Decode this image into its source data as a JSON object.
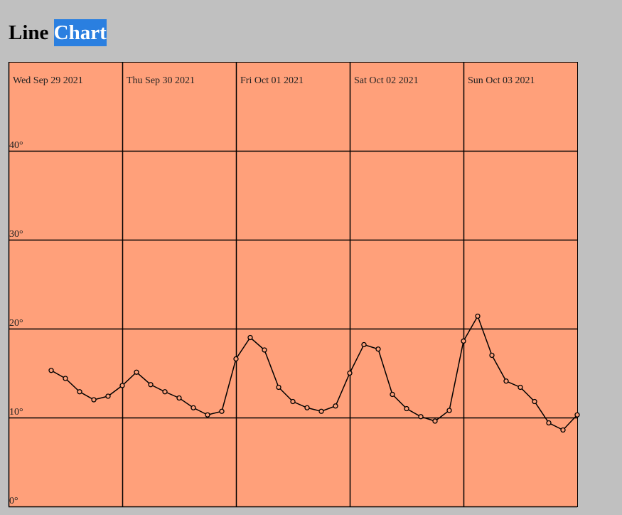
{
  "chart_data": {
    "type": "line",
    "title": "Line Chart",
    "x": [
      9,
      12,
      15,
      18,
      21,
      24,
      27,
      30,
      33,
      36,
      39,
      42,
      45,
      48,
      51,
      54,
      57,
      60,
      63,
      66,
      69,
      72,
      75,
      78,
      81,
      84,
      87,
      90,
      93,
      96,
      99,
      102,
      105,
      108,
      111,
      114,
      117,
      120
    ],
    "series": [
      {
        "name": null,
        "color": "#000000",
        "values": [
          15.3,
          14.4,
          12.9,
          12.0,
          12.4,
          13.6,
          15.1,
          13.7,
          12.9,
          12.2,
          11.1,
          10.3,
          10.7,
          16.6,
          19.0,
          17.6,
          13.4,
          11.8,
          11.1,
          10.7,
          11.3,
          15.0,
          18.2,
          17.7,
          12.6,
          11.0,
          10.1,
          9.6,
          10.8,
          18.6,
          21.4,
          17.0,
          14.1,
          13.4,
          11.8,
          9.4,
          8.6,
          10.3
        ]
      }
    ],
    "xlim": [
      0,
      120
    ],
    "xticks": [
      {
        "value": 0,
        "label": "Wed Sep 29 2021"
      },
      {
        "value": 24,
        "label": "Thu Sep 30 2021"
      },
      {
        "value": 48,
        "label": "Fri Oct 01 2021"
      },
      {
        "value": 72,
        "label": "Sat Oct 02 2021"
      },
      {
        "value": 96,
        "label": "Sun Oct 03 2021"
      }
    ],
    "ylim": [
      0,
      50
    ],
    "yticks": [
      {
        "value": 0,
        "label": "0°"
      },
      {
        "value": 10,
        "label": "10°"
      },
      {
        "value": 20,
        "label": "20°"
      },
      {
        "value": 30,
        "label": "30°"
      },
      {
        "value": 40,
        "label": "40°"
      }
    ],
    "background": "#ffa07a",
    "grid": true
  }
}
